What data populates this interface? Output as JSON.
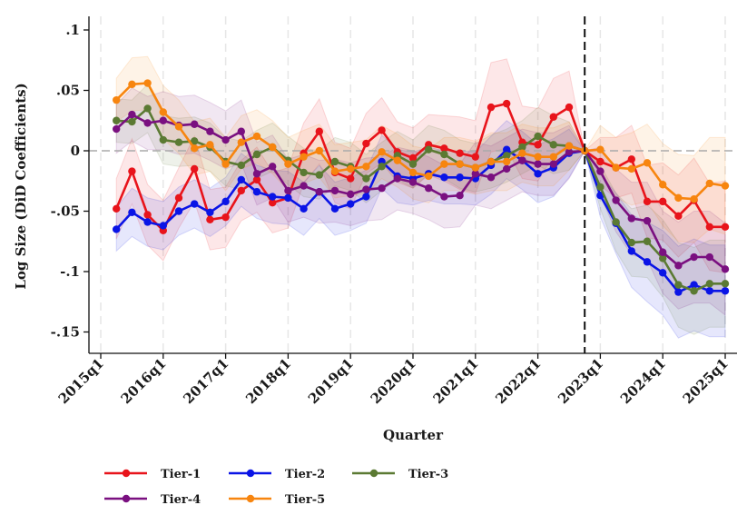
{
  "chart_data": {
    "type": "line",
    "title": "",
    "xlabel": "Quarter",
    "ylabel": "Log Size (DiD Coefficients)",
    "ylim": [
      -0.165,
      0.11
    ],
    "yticks": [
      0.1,
      0.05,
      0,
      -0.05,
      -0.1,
      -0.15
    ],
    "ytick_labels": [
      ".1",
      ".05",
      "0",
      "-.05",
      "-.1",
      "-.15"
    ],
    "xticks": [
      "2015q1",
      "2016q1",
      "2017q1",
      "2018q1",
      "2019q1",
      "2020q1",
      "2021q1",
      "2022q1",
      "2023q1",
      "2024q1",
      "2025q1"
    ],
    "x_start": "2015q2",
    "x": [
      "2015q2",
      "2015q3",
      "2015q4",
      "2016q1",
      "2016q2",
      "2016q3",
      "2016q4",
      "2017q1",
      "2017q2",
      "2017q3",
      "2017q4",
      "2018q1",
      "2018q2",
      "2018q3",
      "2018q4",
      "2019q1",
      "2019q2",
      "2019q3",
      "2019q4",
      "2020q1",
      "2020q2",
      "2020q3",
      "2020q4",
      "2021q1",
      "2021q2",
      "2021q3",
      "2021q4",
      "2022q1",
      "2022q2",
      "2022q3",
      "2022q4",
      "2023q1",
      "2023q2",
      "2023q3",
      "2023q4",
      "2024q1",
      "2024q2",
      "2024q3",
      "2024q4",
      "2025q1"
    ],
    "reference_line_x": "2022q4",
    "zero_line": true,
    "grid": "vertical dashed at x ticks",
    "legend_position": "bottom",
    "series": [
      {
        "name": "Tier-1",
        "color": "#e8141b",
        "values": [
          -0.048,
          -0.017,
          -0.053,
          -0.066,
          -0.039,
          -0.015,
          -0.057,
          -0.055,
          -0.033,
          -0.024,
          -0.043,
          -0.039,
          -0.002,
          0.016,
          -0.018,
          -0.023,
          0.006,
          0.017,
          -0.001,
          -0.006,
          0.005,
          0.002,
          -0.002,
          -0.005,
          0.036,
          0.039,
          0.007,
          0.005,
          0.028,
          0.036,
          0,
          -0.009,
          -0.014,
          -0.007,
          -0.042,
          -0.042,
          -0.054,
          -0.041,
          -0.063,
          -0.063
        ],
        "ci_halfwidth": [
          0.025,
          0.027,
          0.025,
          0.025,
          0.025,
          0.027,
          0.025,
          0.025,
          0.025,
          0.027,
          0.025,
          0.025,
          0.025,
          0.027,
          0.025,
          0.025,
          0.025,
          0.027,
          0.025,
          0.025,
          0.025,
          0.027,
          0.03,
          0.03,
          0.037,
          0.037,
          0.03,
          0.03,
          0.032,
          0.03,
          0,
          0.02,
          0.025,
          0.028,
          0.03,
          0.032,
          0.034,
          0.035,
          0.036,
          0.038
        ]
      },
      {
        "name": "Tier-2",
        "color": "#0a14e6",
        "values": [
          -0.065,
          -0.051,
          -0.059,
          -0.062,
          -0.05,
          -0.044,
          -0.051,
          -0.042,
          -0.024,
          -0.034,
          -0.038,
          -0.039,
          -0.048,
          -0.034,
          -0.048,
          -0.044,
          -0.038,
          -0.009,
          -0.021,
          -0.023,
          -0.019,
          -0.022,
          -0.022,
          -0.023,
          -0.012,
          0.001,
          -0.008,
          -0.019,
          -0.014,
          -0.002,
          0,
          -0.037,
          -0.06,
          -0.083,
          -0.092,
          -0.101,
          -0.117,
          -0.111,
          -0.116,
          -0.116
        ],
        "ci_halfwidth": [
          0.018,
          0.02,
          0.02,
          0.02,
          0.02,
          0.02,
          0.02,
          0.02,
          0.022,
          0.022,
          0.022,
          0.022,
          0.022,
          0.022,
          0.022,
          0.022,
          0.022,
          0.022,
          0.022,
          0.022,
          0.022,
          0.022,
          0.022,
          0.022,
          0.024,
          0.024,
          0.024,
          0.024,
          0.024,
          0.02,
          0,
          0.018,
          0.025,
          0.03,
          0.033,
          0.035,
          0.038,
          0.038,
          0.038,
          0.038
        ]
      },
      {
        "name": "Tier-3",
        "color": "#5b7a33",
        "values": [
          0.025,
          0.024,
          0.035,
          0.009,
          0.007,
          0.008,
          0.003,
          -0.009,
          -0.012,
          -0.003,
          0.003,
          -0.008,
          -0.018,
          -0.02,
          -0.009,
          -0.013,
          -0.023,
          -0.013,
          -0.004,
          -0.011,
          0.001,
          -0.003,
          -0.011,
          -0.014,
          -0.009,
          -0.004,
          0.003,
          0.012,
          0.005,
          0.004,
          0,
          -0.03,
          -0.059,
          -0.076,
          -0.075,
          -0.089,
          -0.111,
          -0.116,
          -0.11,
          -0.11
        ],
        "ci_halfwidth": [
          0.018,
          0.018,
          0.02,
          0.02,
          0.02,
          0.02,
          0.02,
          0.02,
          0.02,
          0.02,
          0.02,
          0.02,
          0.02,
          0.02,
          0.02,
          0.02,
          0.02,
          0.02,
          0.02,
          0.02,
          0.02,
          0.02,
          0.02,
          0.02,
          0.022,
          0.022,
          0.022,
          0.024,
          0.024,
          0.02,
          0,
          0.018,
          0.024,
          0.028,
          0.03,
          0.032,
          0.035,
          0.036,
          0.036,
          0.036
        ]
      },
      {
        "name": "Tier-4",
        "color": "#7a1080",
        "values": [
          0.018,
          0.03,
          0.023,
          0.025,
          0.021,
          0.022,
          0.016,
          0.009,
          0.016,
          -0.019,
          -0.013,
          -0.033,
          -0.029,
          -0.034,
          -0.033,
          -0.036,
          -0.032,
          -0.031,
          -0.023,
          -0.026,
          -0.031,
          -0.038,
          -0.037,
          -0.019,
          -0.022,
          -0.015,
          -0.008,
          -0.011,
          -0.011,
          -0.001,
          0,
          -0.017,
          -0.041,
          -0.056,
          -0.058,
          -0.084,
          -0.095,
          -0.088,
          -0.088,
          -0.098
        ],
        "ci_halfwidth": [
          0.02,
          0.022,
          0.022,
          0.024,
          0.024,
          0.024,
          0.024,
          0.024,
          0.026,
          0.026,
          0.026,
          0.026,
          0.026,
          0.026,
          0.026,
          0.026,
          0.026,
          0.026,
          0.026,
          0.026,
          0.026,
          0.026,
          0.026,
          0.026,
          0.026,
          0.026,
          0.026,
          0.026,
          0.026,
          0.022,
          0,
          0.02,
          0.026,
          0.03,
          0.032,
          0.034,
          0.036,
          0.038,
          0.038,
          0.038
        ]
      },
      {
        "name": "Tier-5",
        "color": "#f7850f",
        "values": [
          0.042,
          0.055,
          0.056,
          0.032,
          0.02,
          0.002,
          0.005,
          -0.011,
          0.007,
          0.012,
          0.003,
          -0.011,
          -0.005,
          0.0,
          -0.017,
          -0.015,
          -0.013,
          -0.001,
          -0.008,
          -0.018,
          -0.021,
          -0.011,
          -0.011,
          -0.014,
          -0.009,
          -0.009,
          -0.002,
          -0.005,
          -0.005,
          0.004,
          0,
          0.001,
          -0.014,
          -0.015,
          -0.01,
          -0.028,
          -0.039,
          -0.04,
          -0.027,
          -0.029
        ],
        "ci_halfwidth": [
          0.018,
          0.022,
          0.022,
          0.022,
          0.022,
          0.022,
          0.022,
          0.022,
          0.022,
          0.022,
          0.022,
          0.022,
          0.022,
          0.022,
          0.022,
          0.022,
          0.022,
          0.022,
          0.022,
          0.022,
          0.022,
          0.022,
          0.022,
          0.022,
          0.024,
          0.024,
          0.024,
          0.024,
          0.024,
          0.02,
          0,
          0.02,
          0.025,
          0.03,
          0.032,
          0.034,
          0.036,
          0.036,
          0.038,
          0.04
        ]
      }
    ]
  }
}
